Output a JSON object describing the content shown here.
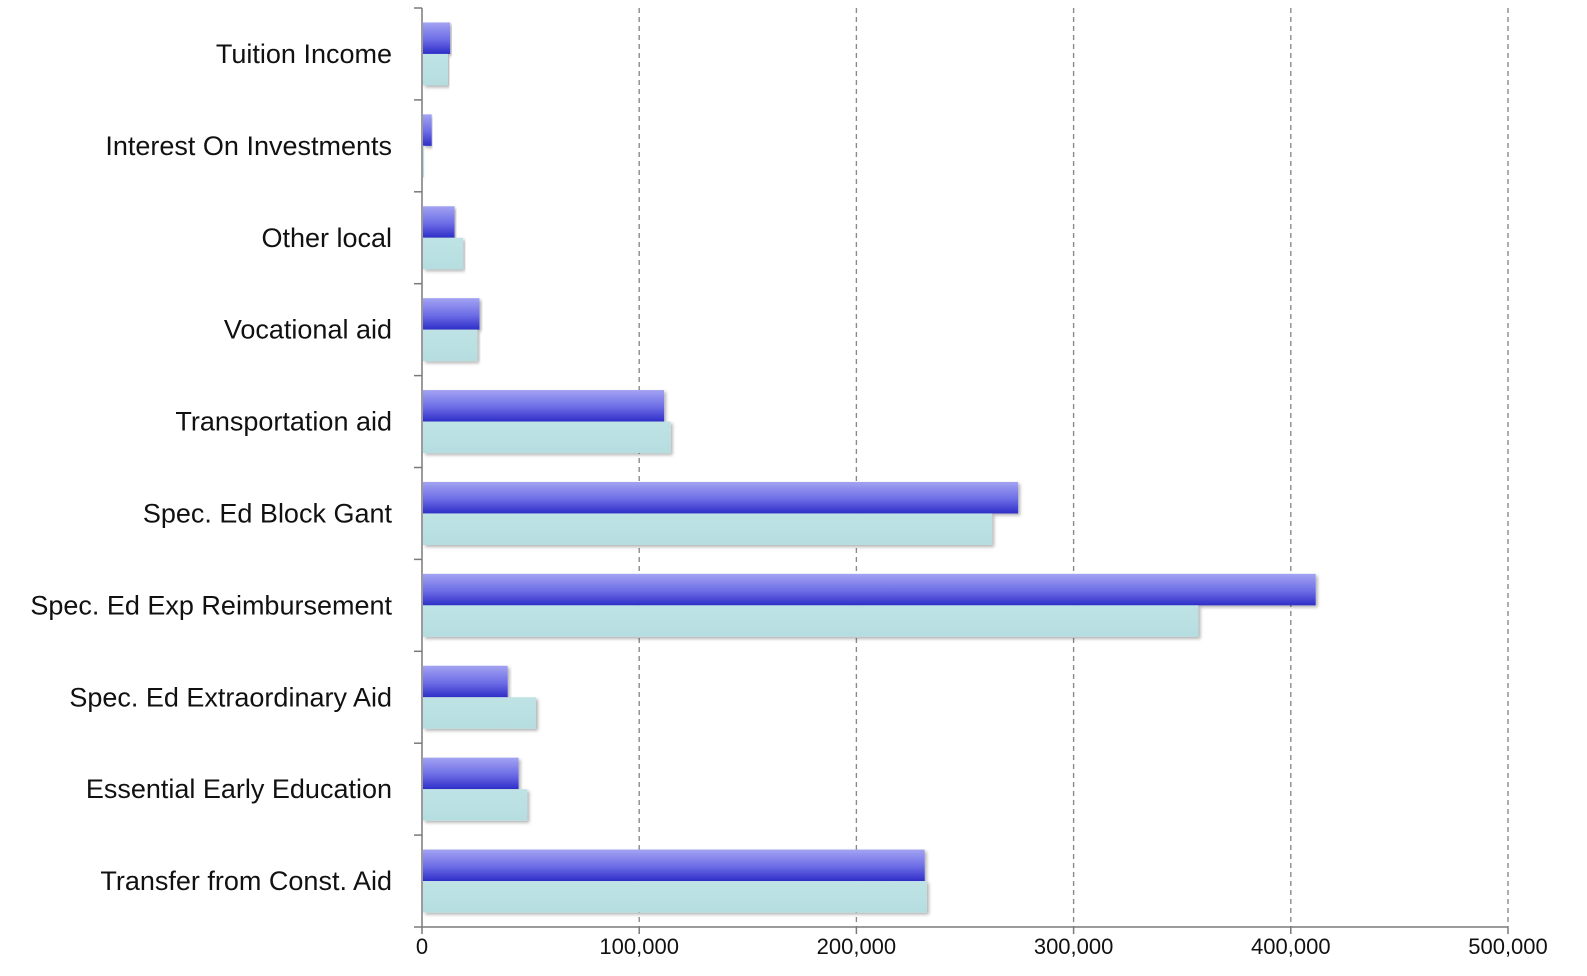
{
  "chart_data": {
    "type": "bar",
    "orientation": "horizontal",
    "title": "",
    "xlabel": "",
    "ylabel": "",
    "categories": [
      "Tuition Income",
      "Interest On Investments",
      "Other local",
      "Vocational aid",
      "Transportation aid",
      "Spec. Ed Block Gant",
      "Spec. Ed Exp Reimbursement",
      "Spec. Ed Extraordinary Aid",
      "Essential Early Education",
      "Transfer from Const. Aid"
    ],
    "series": [
      {
        "color": "#4a4ad8",
        "values": [
          12500,
          4000,
          14500,
          26000,
          111000,
          274000,
          411000,
          39000,
          44000,
          231000
        ]
      },
      {
        "color": "#b8e0e2",
        "values": [
          11500,
          500,
          18500,
          25000,
          114000,
          262000,
          357000,
          52000,
          48000,
          232000
        ]
      }
    ],
    "xlim": [
      0,
      500000
    ],
    "xticks": [
      0,
      100000,
      200000,
      300000,
      400000,
      500000
    ],
    "xtick_labels": [
      "0",
      "100,000",
      "200,000",
      "300,000",
      "400,000",
      "500,000"
    ],
    "grid": "vertical dashed",
    "legend": "none"
  }
}
